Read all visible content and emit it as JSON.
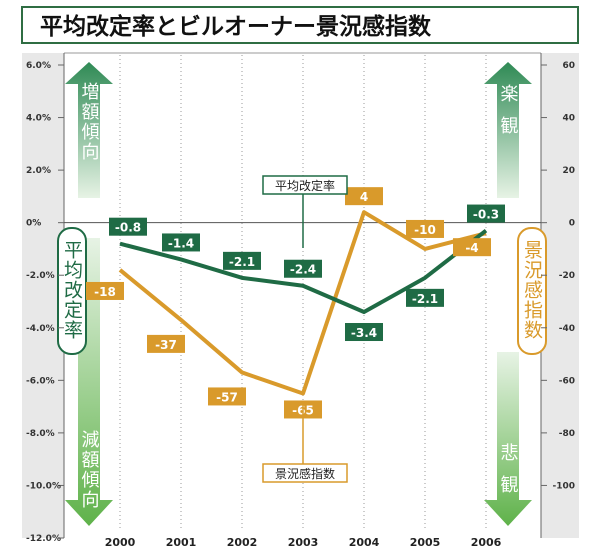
{
  "colors": {
    "green": "#1f6b45",
    "orange": "#d99a2b",
    "title_border": "#2f6d43",
    "grid": "#999999",
    "side_panel": "#e8e8e8",
    "arrow_green_top": "#2f8a55",
    "arrow_green_light": "#e7f3e5",
    "arrow_green_bottom": "#5fb24a"
  },
  "title": "平均改定率とビルオーナー景況感指数",
  "labels": {
    "up_arrow": "増額傾向",
    "down_arrow": "減額傾向",
    "left_axis_box": "平均改定率",
    "right_axis_box": "景況感指数",
    "optimistic": "楽観",
    "pessimistic": "悲観"
  },
  "chart_data": {
    "type": "line",
    "title": "平均改定率とビルオーナー景況感指数",
    "x": [
      "2000",
      "2001",
      "2002",
      "2003",
      "2004",
      "2005",
      "2006"
    ],
    "series": [
      {
        "name": "平均改定率",
        "axis": "left",
        "color": "#1f6b45",
        "values": [
          -0.8,
          -1.4,
          -2.1,
          -2.4,
          -3.4,
          -2.1,
          -0.3
        ],
        "labels": [
          "-0.8",
          "-1.4",
          "-2.1",
          "-2.4",
          "-3.4",
          "-2.1",
          "-0.3"
        ]
      },
      {
        "name": "景況感指数",
        "axis": "right",
        "color": "#d99a2b",
        "values": [
          -18,
          -37,
          -57,
          -65,
          4,
          -10,
          -4
        ],
        "labels": [
          "-18",
          "-37",
          "-57",
          "-65",
          "4",
          "-10",
          "-4"
        ]
      }
    ],
    "y_left": {
      "ylim": [
        -12,
        6
      ],
      "ticks": [
        6,
        4,
        2,
        0,
        -2,
        -4,
        -6,
        -8,
        -10,
        -12
      ],
      "tick_labels": [
        "6.0%",
        "4.0%",
        "2.0%",
        "0%",
        "-2.0%",
        "-4.0%",
        "-6.0%",
        "-8.0%",
        "-10.0%",
        "-12.0%"
      ]
    },
    "y_right": {
      "ylim": [
        -120,
        60
      ],
      "ticks": [
        60,
        40,
        20,
        0,
        -20,
        -40,
        -60,
        -80,
        -100
      ],
      "tick_labels": [
        "60",
        "40",
        "20",
        "0",
        "-20",
        "-40",
        "-60",
        "-80",
        "-100"
      ]
    },
    "grid": "vertical-dotted"
  }
}
